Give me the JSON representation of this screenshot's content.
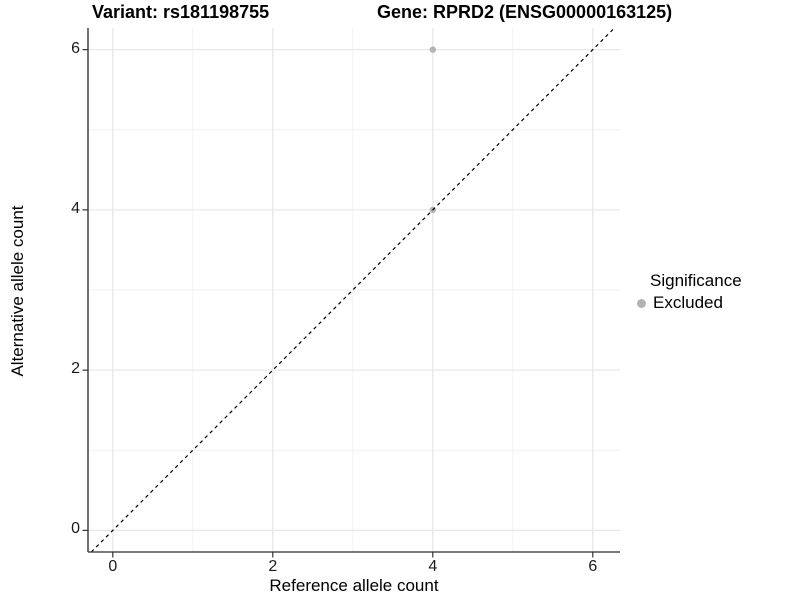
{
  "chart_data": {
    "type": "scatter",
    "title_left": "Variant: rs181198755",
    "title_right": "Gene: RPRD2 (ENSG00000163125)",
    "xlabel": "Reference allele count",
    "ylabel": "Alternative allele count",
    "xlim": [
      -0.31,
      6.34
    ],
    "ylim": [
      -0.27,
      6.27
    ],
    "x_ticks": [
      0,
      2,
      4,
      6
    ],
    "y_ticks": [
      0,
      2,
      4,
      6
    ],
    "x_minor_ticks": [
      1,
      3,
      5
    ],
    "y_minor_ticks": [
      1,
      3,
      5
    ],
    "grid": true,
    "points": [
      {
        "x": 4,
        "y": 6,
        "series": "Excluded"
      },
      {
        "x": 4,
        "y": 4,
        "series": "Excluded"
      }
    ],
    "identity_line": {
      "slope": 1,
      "intercept": 0,
      "style": "dashed",
      "color": "#000000"
    },
    "legend": {
      "title": "Significance",
      "position": "right",
      "items": [
        {
          "label": "Excluded",
          "color": "#b3b3b3",
          "key_shape": "circle-icon"
        }
      ]
    },
    "colors": {
      "point": "#b3b3b3",
      "grid_major": "#e8e8e8",
      "grid_minor": "#f0f0f0",
      "axis_line": "#4d4d4d",
      "tick_mark": "#333333",
      "text": "#000000"
    }
  }
}
